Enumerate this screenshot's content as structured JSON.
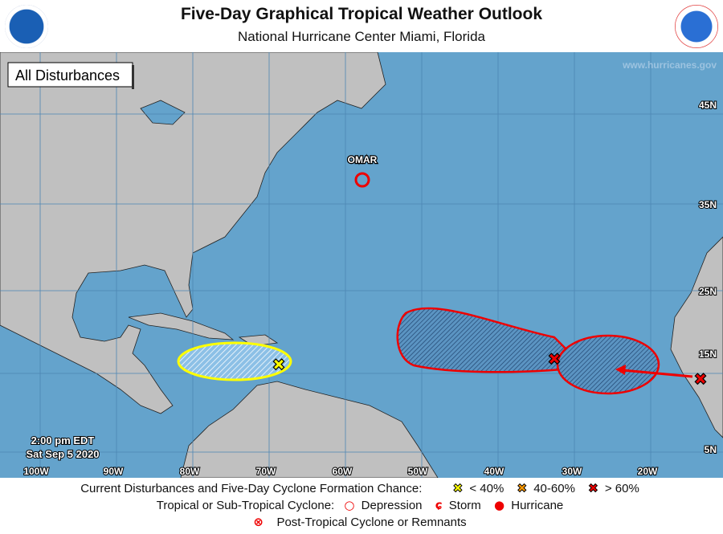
{
  "header": {
    "title": "Five-Day Graphical Tropical Weather Outlook",
    "subtitle": "National Hurricane Center  Miami, Florida",
    "left_logo": "NOAA",
    "right_logo": "NATIONAL WEATHER SERVICE"
  },
  "map": {
    "panel_label": "All Disturbances",
    "website": "www.hurricanes.gov",
    "timestamp_time": "2:00 pm EDT",
    "timestamp_date": "Sat Sep 5 2020",
    "lon_labels": [
      "100W",
      "90W",
      "80W",
      "70W",
      "60W",
      "50W",
      "40W",
      "30W",
      "20W"
    ],
    "lat_labels": [
      "45N",
      "35N",
      "25N",
      "15N",
      "5N"
    ],
    "storms": [
      {
        "name": "OMAR",
        "type": "Post-Tropical / Depression marker",
        "icon": "red-circle"
      }
    ],
    "disturbances": [
      {
        "chance": "< 40%",
        "color": "#ffff00"
      },
      {
        "chance": "> 60%",
        "color": "#ff0000"
      },
      {
        "chance": "> 60%",
        "color": "#ff0000"
      }
    ],
    "colors": {
      "ocean": "#64a3cc",
      "land": "#c0c0c0",
      "low": "#ffff00",
      "medium": "#ff9900",
      "high": "#ee0000"
    }
  },
  "legend": {
    "row1_label": "Current Disturbances and Five-Day Cyclone Formation Chance:",
    "low": "< 40%",
    "medium": "40-60%",
    "high": "> 60%",
    "row2_label": "Tropical or Sub-Tropical Cyclone:",
    "depression": "Depression",
    "storm": "Storm",
    "hurricane": "Hurricane",
    "post_tropical": "Post-Tropical Cyclone or Remnants"
  }
}
